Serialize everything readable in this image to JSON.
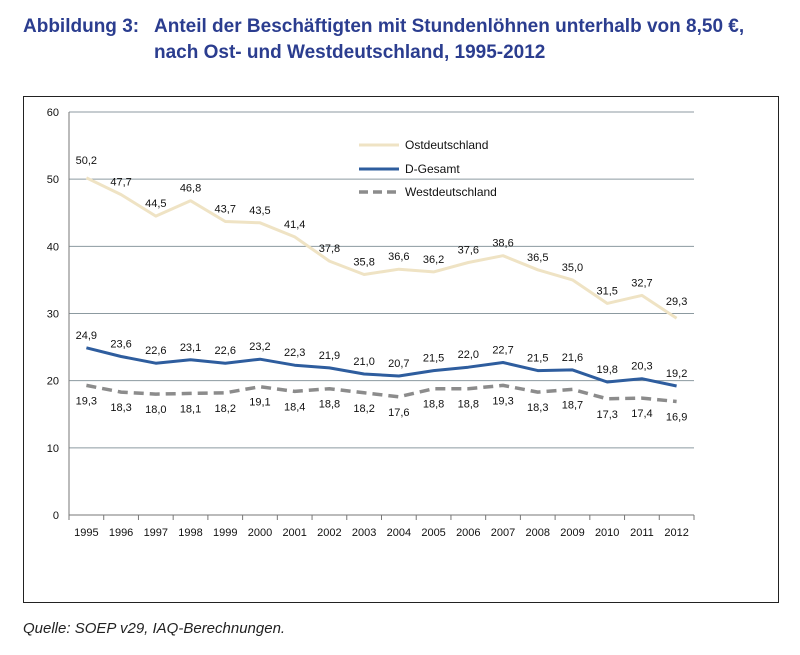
{
  "header": {
    "label": "Abbildung 3:",
    "line1": "Anteil der Beschäftigten mit Stundenlöhnen unterhalb von 8,50 €,",
    "line2": "nach Ost- und Westdeutschland, 1995-2012"
  },
  "source": "Quelle: SOEP v29, IAQ-Berechnungen.",
  "colors": {
    "ost": "#efe3c4",
    "gesamt": "#2e5d9e",
    "west": "#8c8c8c",
    "grid": "#8c9aa0",
    "title": "#2b3d8f"
  },
  "chart_data": {
    "type": "line",
    "x": [
      "1995",
      "1996",
      "1997",
      "1998",
      "1999",
      "2000",
      "2001",
      "2002",
      "2003",
      "2004",
      "2005",
      "2006",
      "2007",
      "2008",
      "2009",
      "2010",
      "2011",
      "2012"
    ],
    "ylim": [
      0,
      60
    ],
    "yticks": [
      "0",
      "10",
      "20",
      "30",
      "40",
      "50",
      "60"
    ],
    "grid": true,
    "legend_position": "top-right",
    "series": [
      {
        "key": "ost",
        "name": "Ostdeutschland",
        "style": "solid",
        "values": [
          50.2,
          47.7,
          44.5,
          46.8,
          43.7,
          43.5,
          41.4,
          37.8,
          35.8,
          36.6,
          36.2,
          37.6,
          38.6,
          36.5,
          35.0,
          31.5,
          32.7,
          29.3
        ],
        "labels": [
          "50,2",
          "47,7",
          "44,5",
          "46,8",
          "43,7",
          "43,5",
          "41,4",
          "37,8",
          "35,8",
          "36,6",
          "36,2",
          "37,6",
          "38,6",
          "36,5",
          "35,0",
          "31,5",
          "32,7",
          "29,3"
        ]
      },
      {
        "key": "gesamt",
        "name": "D-Gesamt",
        "style": "solid",
        "values": [
          24.9,
          23.6,
          22.6,
          23.1,
          22.6,
          23.2,
          22.3,
          21.9,
          21.0,
          20.7,
          21.5,
          22.0,
          22.7,
          21.5,
          21.6,
          19.8,
          20.3,
          19.2
        ],
        "labels": [
          "24,9",
          "23,6",
          "22,6",
          "23,1",
          "22,6",
          "23,2",
          "22,3",
          "21,9",
          "21,0",
          "20,7",
          "21,5",
          "22,0",
          "22,7",
          "21,5",
          "21,6",
          "19,8",
          "20,3",
          "19,2"
        ]
      },
      {
        "key": "west",
        "name": "Westdeutschland",
        "style": "dashed",
        "values": [
          19.3,
          18.3,
          18.0,
          18.1,
          18.2,
          19.1,
          18.4,
          18.8,
          18.2,
          17.6,
          18.8,
          18.8,
          19.3,
          18.3,
          18.7,
          17.3,
          17.4,
          16.9
        ],
        "labels": [
          "19,3",
          "18,3",
          "18,0",
          "18,1",
          "18,2",
          "19,1",
          "18,4",
          "18,8",
          "18,2",
          "17,6",
          "18,8",
          "18,8",
          "19,3",
          "18,3",
          "18,7",
          "17,3",
          "17,4",
          "16,9"
        ]
      }
    ]
  }
}
